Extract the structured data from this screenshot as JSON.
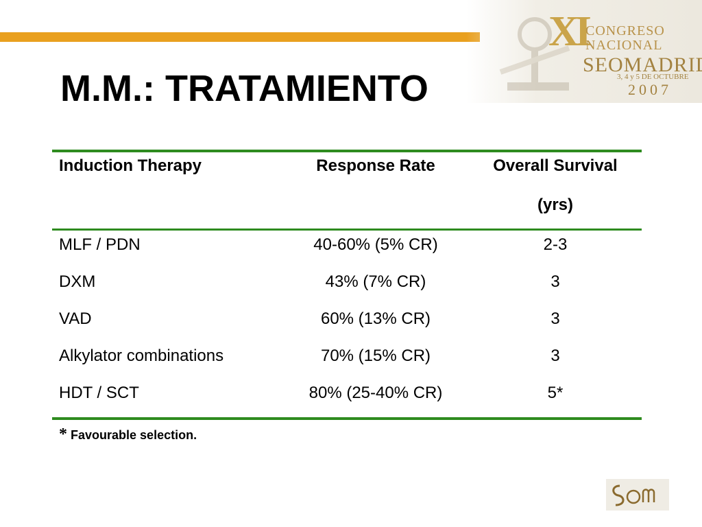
{
  "title": "M.M.: TRATAMIENTO",
  "logo": {
    "roman": "XI",
    "line1": "CONGRESO",
    "line2": "NACIONAL",
    "line3": "SEOMADRID",
    "line4": "3, 4 y 5 DE OCTUBRE",
    "line5": "2007"
  },
  "table": {
    "headers": [
      "Induction Therapy",
      "Response Rate",
      "Overall Survival",
      "(yrs)"
    ],
    "rows": [
      [
        "MLF / PDN",
        "40-60% (5% CR)",
        "2-3"
      ],
      [
        "DXM",
        "43% (7% CR)",
        "3"
      ],
      [
        "VAD",
        "60% (13% CR)",
        "3"
      ],
      [
        "Alkylator combinations",
        "70% (15% CR)",
        "3"
      ],
      [
        "HDT / SCT",
        "80% (25-40% CR)",
        "5*"
      ]
    ]
  },
  "footnote": {
    "star": "*",
    "text": "Favourable selection."
  },
  "seom_logo": "SEOM",
  "colors": {
    "accent_bar": "#e9a01f",
    "table_rule": "#2e8b1f",
    "logo_gold": "#b8924a"
  }
}
